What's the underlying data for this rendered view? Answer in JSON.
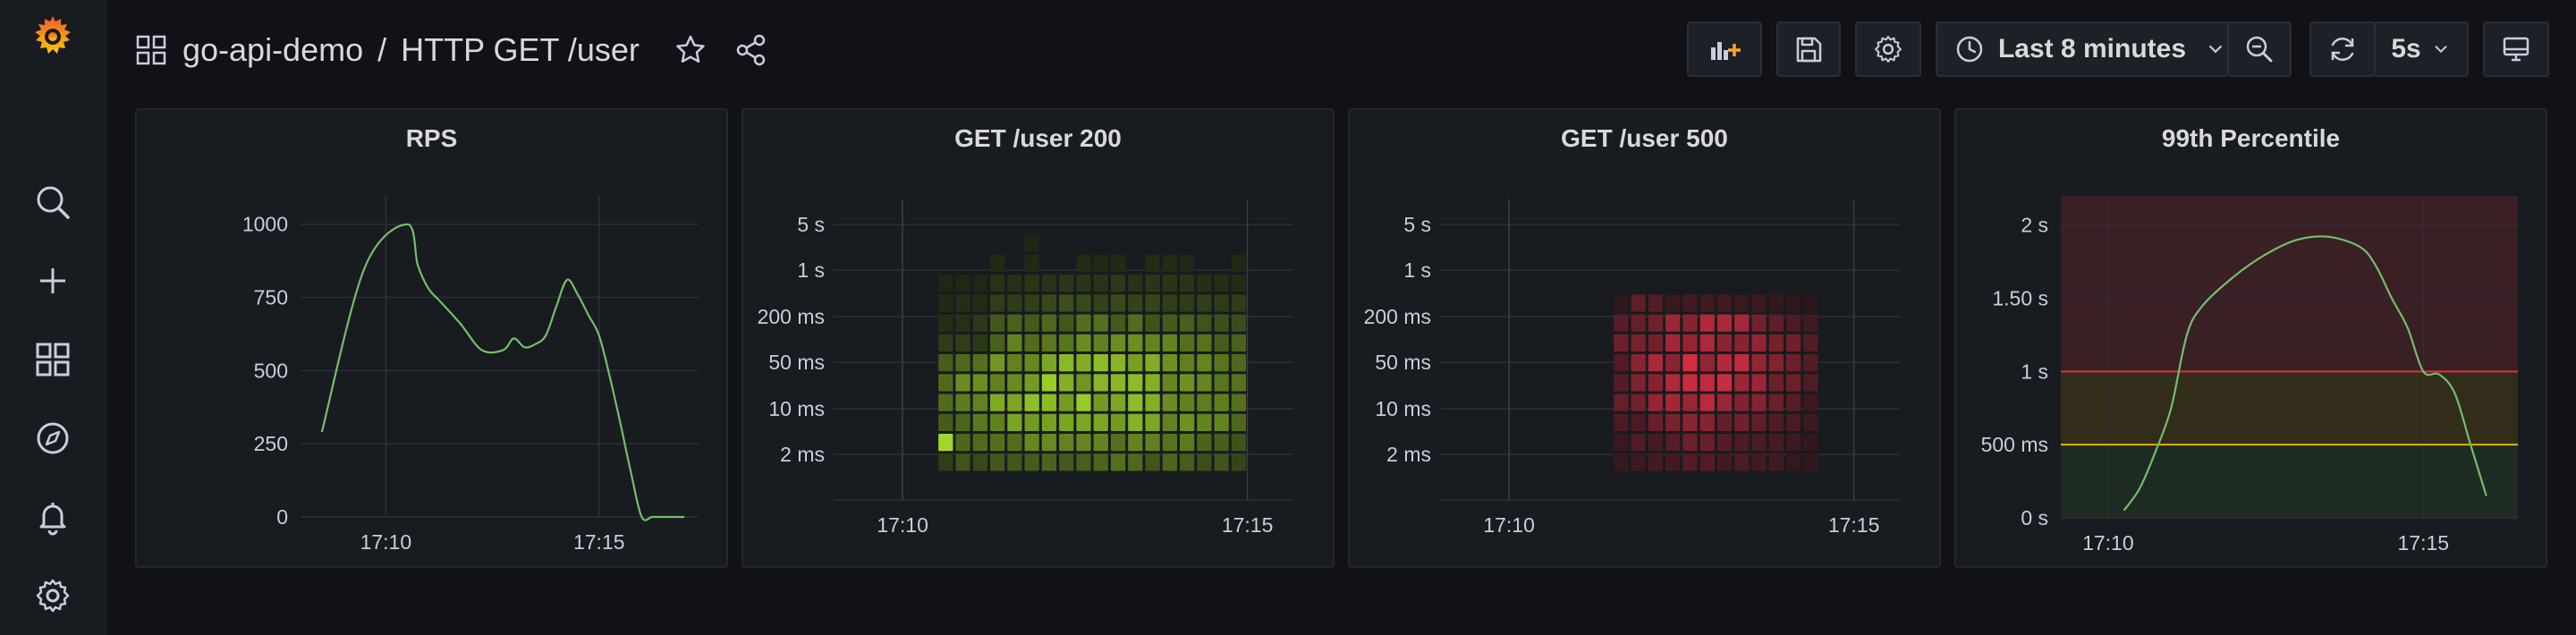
{
  "colors": {
    "background": "#111217",
    "panel": "#181b1f",
    "rps_line": "#73bf69",
    "heat_green": "#a0d82a",
    "heat_red": "#e02f44",
    "threshold_red": "#e02f44",
    "threshold_yellow": "#e0b400"
  },
  "sidebar": {
    "icons": [
      "grafana-logo-icon",
      "search-icon",
      "plus-icon",
      "dashboards-icon",
      "explore-compass-icon",
      "alerting-bell-icon",
      "settings-gear-icon"
    ]
  },
  "header": {
    "folder": "go-api-demo",
    "separator": "/",
    "dashboard_title": "HTTP GET /user"
  },
  "toolbar": {
    "time_range": "Last 8 minutes",
    "refresh_interval": "5s"
  },
  "panels": [
    {
      "title": "RPS"
    },
    {
      "title": "GET /user 200"
    },
    {
      "title": "GET /user 500"
    },
    {
      "title": "99th Percentile"
    }
  ],
  "chart_data": [
    {
      "type": "line",
      "title": "RPS",
      "x": [
        "17:08:30",
        "17:09:30",
        "17:10:30",
        "17:10:45",
        "17:11:00",
        "17:11:15",
        "17:11:45",
        "17:12:15",
        "17:12:45",
        "17:13:00",
        "17:13:15",
        "17:13:30",
        "17:13:45",
        "17:14:00",
        "17:14:15",
        "17:14:30",
        "17:14:45",
        "17:15:00",
        "17:15:15",
        "17:15:30",
        "17:15:45",
        "17:16:00",
        "17:16:15",
        "17:16:30",
        "17:17:00"
      ],
      "values": [
        290,
        850,
        1000,
        860,
        780,
        740,
        660,
        570,
        570,
        610,
        580,
        590,
        620,
        720,
        810,
        760,
        690,
        620,
        480,
        320,
        150,
        0,
        0,
        0,
        0
      ],
      "x_tick_labels": [
        "17:10",
        "17:15"
      ],
      "y_tick_labels": [
        "0",
        "250",
        "500",
        "750",
        "1000"
      ],
      "ylim": [
        0,
        1100
      ],
      "xlim": [
        "17:08:00",
        "17:17:20"
      ]
    },
    {
      "type": "heatmap",
      "title": "GET /user 200",
      "y_tick_labels": [
        "2 ms",
        "10 ms",
        "50 ms",
        "200 ms",
        "1 s",
        "5 s"
      ],
      "x_tick_labels": [
        "17:10",
        "17:15"
      ],
      "time_range": [
        "17:10:30",
        "17:15:00"
      ],
      "buckets": 12,
      "columns": 18,
      "color": "green"
    },
    {
      "type": "heatmap",
      "title": "GET /user 500",
      "y_tick_labels": [
        "2 ms",
        "10 ms",
        "50 ms",
        "200 ms",
        "1 s",
        "5 s"
      ],
      "x_tick_labels": [
        "17:10",
        "17:15"
      ],
      "time_range": [
        "17:11:30",
        "17:14:30"
      ],
      "buckets": 9,
      "columns": 12,
      "color": "red"
    },
    {
      "type": "line",
      "title": "99th Percentile",
      "x": [
        "17:10:15",
        "17:10:30",
        "17:10:45",
        "17:11:00",
        "17:11:15",
        "17:11:30",
        "17:12:00",
        "17:12:30",
        "17:13:00",
        "17:13:30",
        "17:14:00",
        "17:14:15",
        "17:14:30",
        "17:14:45",
        "17:15:00",
        "17:15:15",
        "17:15:30",
        "17:15:45",
        "17:16:00"
      ],
      "values": [
        0.05,
        0.2,
        0.45,
        0.75,
        1.25,
        1.45,
        1.65,
        1.8,
        1.9,
        1.92,
        1.85,
        1.72,
        1.5,
        1.3,
        1.0,
        0.98,
        0.85,
        0.5,
        0.15
      ],
      "x_tick_labels": [
        "17:10",
        "17:15"
      ],
      "y_tick_labels": [
        "0 s",
        "500 ms",
        "1 s",
        "1.50 s",
        "2 s"
      ],
      "ylim": [
        0,
        2.2
      ],
      "xlim": [
        "17:09:15",
        "17:16:30"
      ],
      "thresholds": [
        {
          "value": 0.5,
          "color": "#e0b400"
        },
        {
          "value": 1.0,
          "color": "#e02f44"
        }
      ]
    }
  ]
}
